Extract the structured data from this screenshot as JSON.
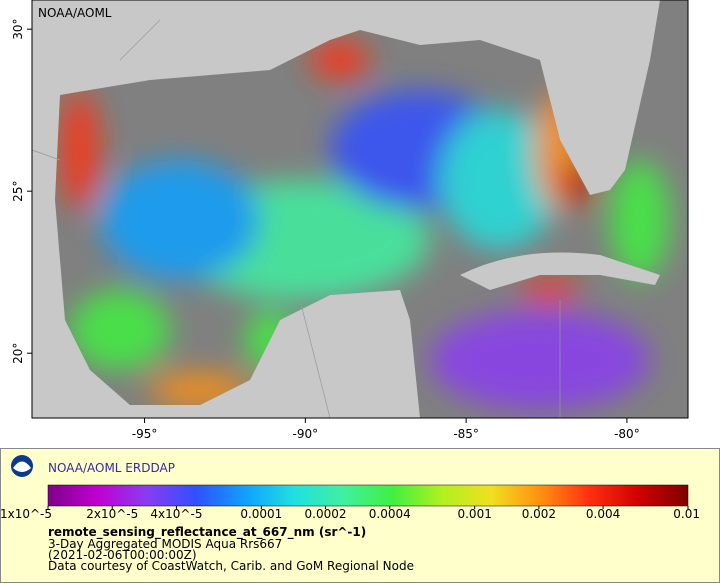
{
  "chart_data": {
    "type": "map",
    "watermark": "NOAA/AOML",
    "xlim": [
      -98.5,
      -78.1
    ],
    "ylim": [
      18.0,
      30.9
    ],
    "xticks": [
      {
        "value": -95,
        "label": "-95°"
      },
      {
        "value": -90,
        "label": "-90°"
      },
      {
        "value": -85,
        "label": "-85°"
      },
      {
        "value": -80,
        "label": "-80°"
      }
    ],
    "yticks": [
      {
        "value": 20,
        "label": "20°"
      },
      {
        "value": 25,
        "label": "25°"
      },
      {
        "value": 30,
        "label": "30°"
      }
    ],
    "brand": "NOAA/AOML ERDDAP",
    "colorbar": {
      "scale": "log",
      "lim": [
        1e-05,
        0.01
      ],
      "ticks": [
        {
          "value": 1e-05,
          "label": "1x10^-5"
        },
        {
          "value": 2e-05,
          "label": "2x10^-5"
        },
        {
          "value": 4e-05,
          "label": "4x10^-5"
        },
        0.0001,
        0.0002,
        0.0004,
        0.001,
        0.002,
        0.004,
        0.01
      ],
      "colors": [
        "#80008b",
        "#c000d0",
        "#8a3cf0",
        "#3050ff",
        "#10a0ff",
        "#20e0e0",
        "#40f0a0",
        "#40f040",
        "#b0f020",
        "#f0e020",
        "#ff9010",
        "#ff3010",
        "#d00000",
        "#800000"
      ]
    },
    "variable": "remote_sensing_reflectance_at_667_nm (sr^-1)",
    "description": [
      "3-Day Aggregated MODIS Aqua Rrs667",
      "(2021-02-06T00:00:00Z)",
      "Data courtesy of CoastWatch, Carib. and GoM Regional Node"
    ]
  }
}
